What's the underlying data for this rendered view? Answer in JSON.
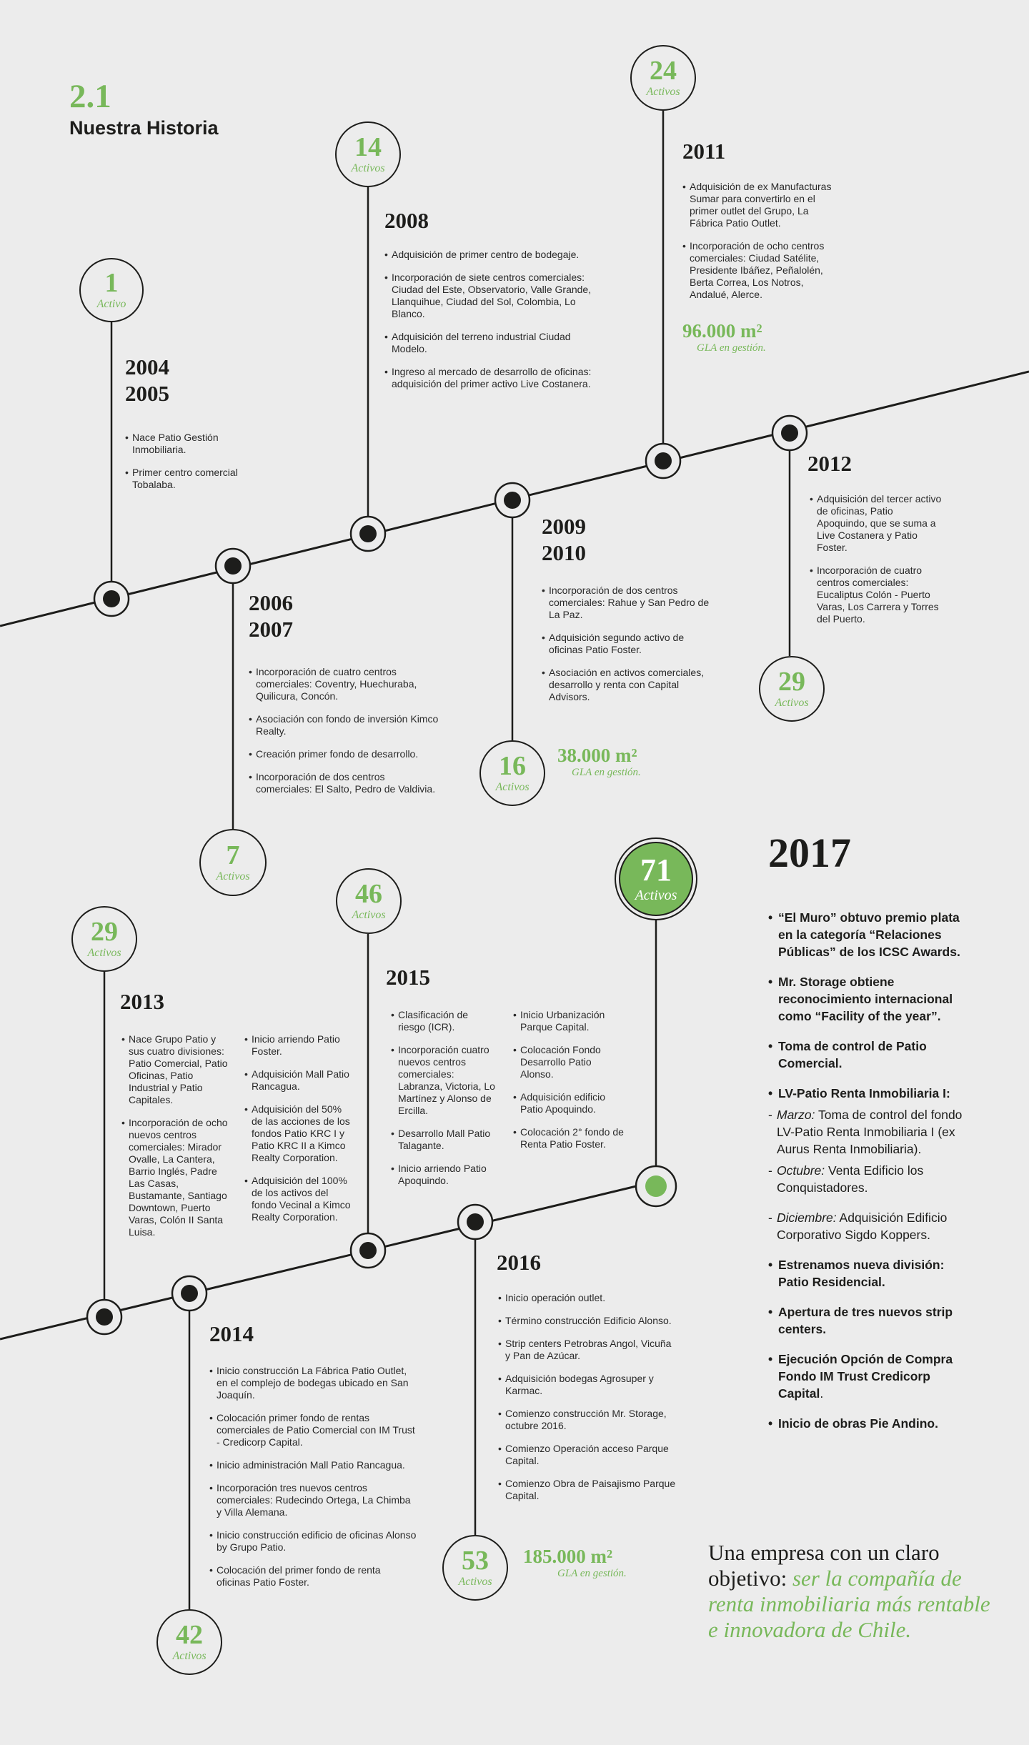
{
  "header": {
    "section_number": "2.1",
    "title": "Nuestra Historia"
  },
  "colors": {
    "accent": "#78b85a",
    "ink": "#1d1d1b",
    "background": "#ececec"
  },
  "bubbles": [
    {
      "count": "1",
      "label": "Activo"
    },
    {
      "count": "7",
      "label": "Activos"
    },
    {
      "count": "14",
      "label": "Activos"
    },
    {
      "count": "16",
      "label": "Activos"
    },
    {
      "count": "24",
      "label": "Activos"
    },
    {
      "count": "29",
      "label": "Activos"
    },
    {
      "count": "29",
      "label": "Activos"
    },
    {
      "count": "42",
      "label": "Activos"
    },
    {
      "count": "46",
      "label": "Activos"
    },
    {
      "count": "53",
      "label": "Activos"
    },
    {
      "count": "71",
      "label": "Activos"
    }
  ],
  "milestones": {
    "y2004": {
      "year": "2004\n2005",
      "items": [
        "Nace Patio Gestión Inmobiliaria.",
        "Primer centro comercial Tobalaba."
      ]
    },
    "y2006": {
      "year": "2006\n2007",
      "items": [
        "Incorporación de cuatro centros comerciales: Coventry, Huechuraba, Quilicura, Concón.",
        "Asociación con fondo de inversión Kimco Realty.",
        "Creación primer fondo de desarrollo.",
        "Incorporación de dos centros comerciales: El Salto, Pedro de Valdivia."
      ]
    },
    "y2008": {
      "year": "2008",
      "items": [
        "Adquisición de primer centro de bodegaje.",
        "Incorporación de siete centros comerciales: Ciudad del Este, Observatorio, Valle Grande, Llanquihue, Ciudad del Sol, Colombia, Lo Blanco.",
        "Adquisición del terreno industrial Ciudad Modelo.",
        "Ingreso al mercado de desarrollo de oficinas: adquisición del primer activo Live Costanera."
      ]
    },
    "y2009": {
      "year": "2009\n2010",
      "items": [
        "Incorporación de dos centros comerciales: Rahue y San Pedro de La Paz.",
        "Adquisición segundo activo de oficinas Patio Foster.",
        "Asociación en activos comerciales, desarrollo y renta con Capital Advisors."
      ]
    },
    "y2011": {
      "year": "2011",
      "items": [
        "Adquisición de ex Manufacturas Sumar para convertirlo en el primer outlet del Grupo, La Fábrica Patio Outlet.",
        "Incorporación de ocho centros comerciales: Ciudad Satélite, Presidente Ibáñez, Peñalolén, Berta Correa, Los Notros, Andalué, Alerce."
      ]
    },
    "y2012": {
      "year": "2012",
      "items": [
        "Adquisición del tercer activo de oficinas, Patio Apoquindo, que se suma a Live Costanera y Patio Foster.",
        "Incorporación de cuatro centros comerciales: Eucaliptus Colón - Puerto Varas, Los Carrera y Torres del Puerto."
      ]
    },
    "y2013": {
      "year": "2013",
      "items_a": [
        "Nace Grupo Patio y sus cuatro divisiones: Patio Comercial, Patio Oficinas, Patio Industrial y Patio Capitales.",
        "Incorporación de ocho nuevos centros comerciales: Mirador Ovalle, La Cantera, Barrio Inglés, Padre Las Casas, Bustamante, Santiago Downtown, Puerto Varas, Colón II Santa Luisa."
      ],
      "items_b": [
        "Inicio arriendo Patio Foster.",
        "Adquisición Mall Patio Rancagua.",
        "Adquisición del 50% de las acciones de los fondos Patio KRC I y Patio KRC II a Kimco Realty Corporation.",
        "Adquisición del 100% de los activos del fondo Vecinal a Kimco Realty Corporation."
      ]
    },
    "y2014": {
      "year": "2014",
      "items": [
        "Inicio construcción La Fábrica Patio Outlet, en el complejo de bodegas ubicado en San Joaquín.",
        "Colocación primer fondo de rentas comerciales de Patio Comercial con IM Trust - Credicorp Capital.",
        "Inicio administración Mall Patio Rancagua.",
        "Incorporación tres nuevos centros comerciales: Rudecindo Ortega, La Chimba y Villa Alemana.",
        "Inicio construcción edificio de oficinas Alonso by Grupo Patio.",
        "Colocación del primer fondo de renta oficinas Patio Foster."
      ]
    },
    "y2015": {
      "year": "2015",
      "items_a": [
        "Clasificación de riesgo (ICR).",
        "Incorporación cuatro nuevos centros comerciales: Labranza, Victoria, Lo Martínez y Alonso de Ercilla.",
        "Desarrollo Mall Patio Talagante.",
        "Inicio arriendo Patio Apoquindo."
      ],
      "items_b": [
        "Inicio Urbanización Parque Capital.",
        "Colocación Fondo Desarrollo Patio Alonso.",
        "Adquisición edificio Patio Apoquindo.",
        "Colocación 2° fondo de Renta Patio Foster."
      ]
    },
    "y2016": {
      "year": "2016",
      "items": [
        "Inicio operación outlet.",
        "Término construcción Edificio Alonso.",
        "Strip centers Petrobras Angol, Vicuña y Pan de Azúcar.",
        "Adquisición bodegas Agrosuper y Karmac.",
        "Comienzo construcción Mr. Storage, octubre 2016.",
        "Comienzo Operación acceso Parque Capital.",
        "Comienzo Obra de Paisajismo Parque Capital."
      ]
    }
  },
  "gla": [
    {
      "value": "38.000 m²",
      "label": "GLA en gestión."
    },
    {
      "value": "96.000 m²",
      "label": "GLA en gestión."
    },
    {
      "value": "185.000 m²",
      "label": "GLA en gestión."
    }
  ],
  "y2017": {
    "year": "2017",
    "b1": "“El Muro” obtuvo premio plata en la categoría “Relaciones Públicas” de los ICSC Awards.",
    "b2": "Mr. Storage obtiene reconocimiento internacional como “Facility of the year”.",
    "b3": "Toma de control de Patio Comercial.",
    "b4": "LV-Patio Renta Inmobiliaria I:",
    "d1_month": "Marzo:",
    "d1_text": " Toma de control del fondo LV-Patio Renta Inmobiliaria I (ex Aurus Renta Inmobiliaria).",
    "d2_month": "Octubre:",
    "d2_text": " Venta Edificio los Conquistadores.",
    "d3_month": "Diciembre:",
    "d3_text": " Adquisición Edificio Corporativo Sigdo Koppers.",
    "b5": "Estrenamos nueva división: Patio Residencial.",
    "b6": "Apertura de tres nuevos strip centers.",
    "b7_bold": "Ejecución Opción de Compra Fondo IM Trust Credicorp Capital",
    "b7_tail": ".",
    "b8": "Inicio de obras Pie Andino."
  },
  "closing": {
    "plain": "Una empresa con un claro objetivo: ",
    "highlight": "ser la compañía de renta inmobiliaria más rentable e innovadora de Chile."
  }
}
